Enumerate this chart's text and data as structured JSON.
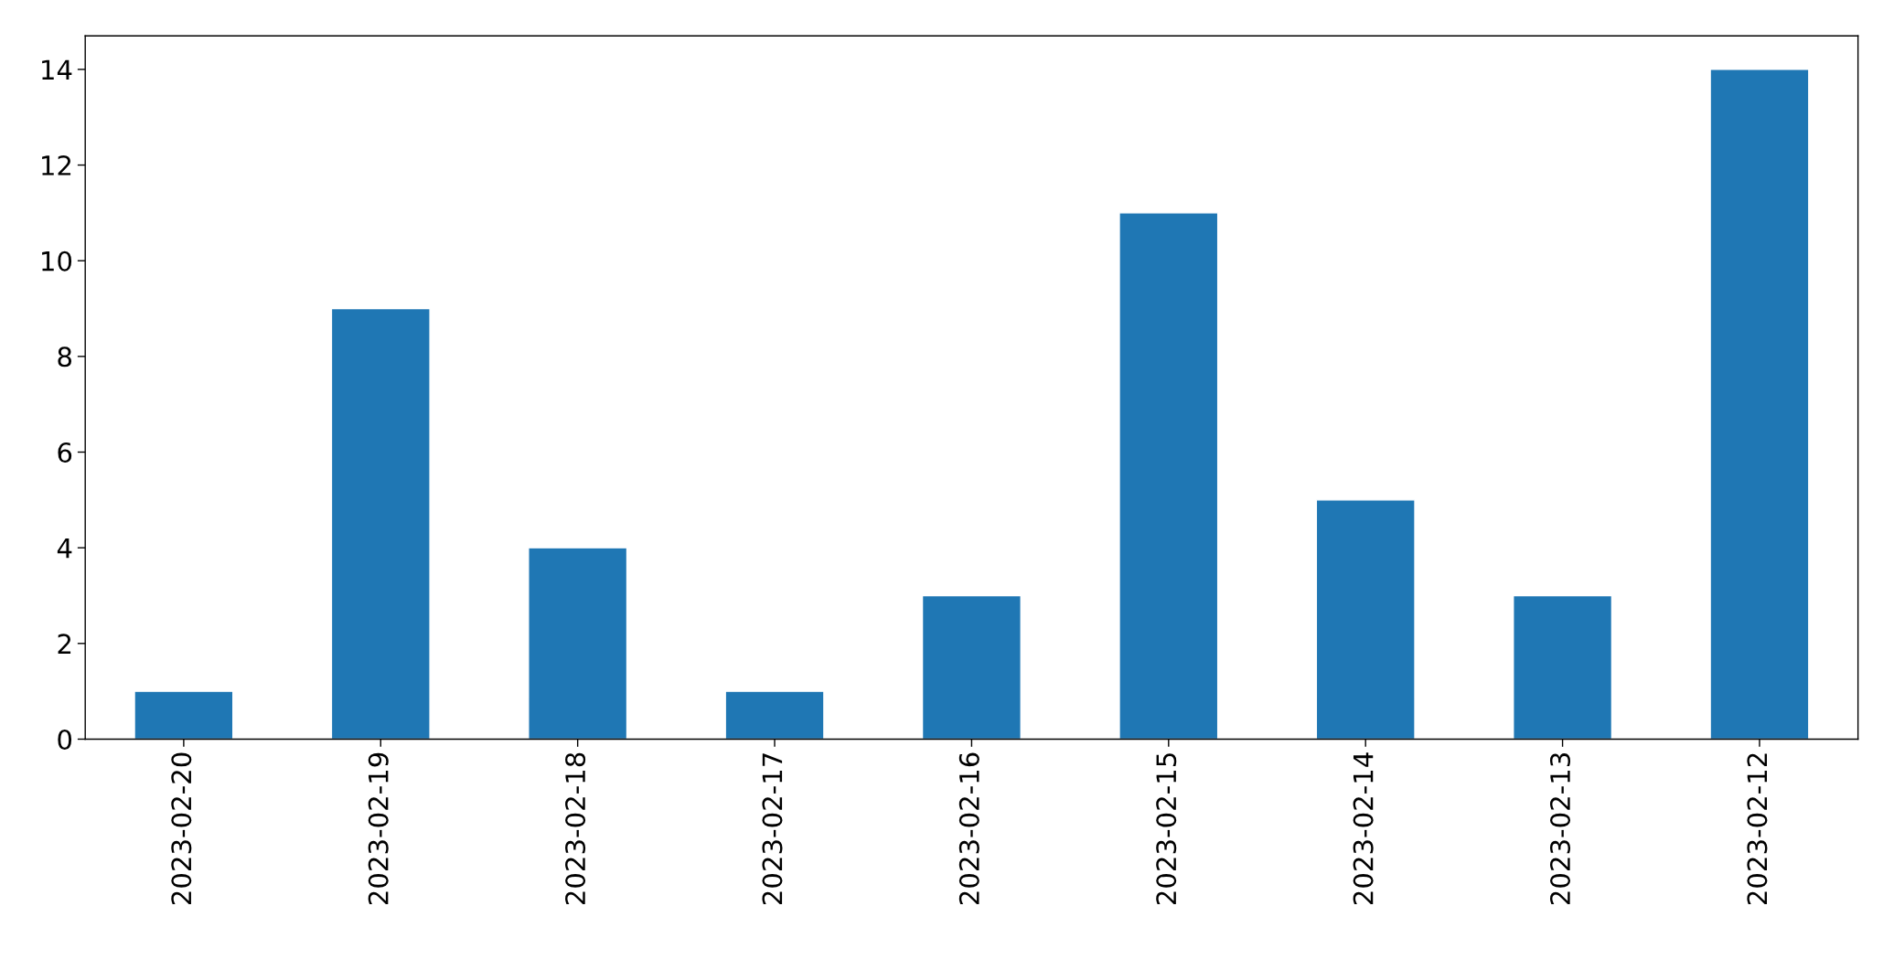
{
  "chart_data": {
    "type": "bar",
    "categories": [
      "2023-02-20",
      "2023-02-19",
      "2023-02-18",
      "2023-02-17",
      "2023-02-16",
      "2023-02-15",
      "2023-02-14",
      "2023-02-13",
      "2023-02-12"
    ],
    "values": [
      1,
      9,
      4,
      1,
      3,
      11,
      5,
      3,
      14
    ],
    "color": "#1f77b4",
    "ylim": [
      0,
      14.7
    ],
    "yticks": [
      0,
      2,
      4,
      6,
      8,
      10,
      12,
      14
    ],
    "grid": false,
    "legend": false
  }
}
